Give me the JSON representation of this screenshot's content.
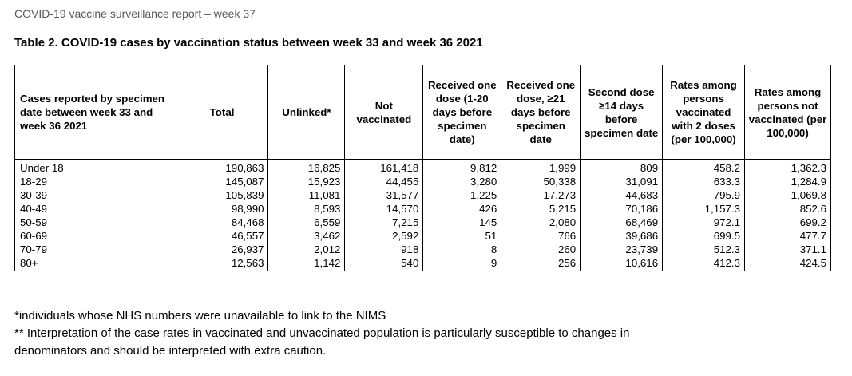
{
  "document": {
    "header": "COVID-19 vaccine surveillance report – week 37",
    "caption": "Table 2. COVID-19 cases by vaccination status between week 33 and week 36 2021",
    "table": {
      "columns": [
        "Cases reported by specimen date between week 33 and week 36 2021",
        "Total",
        "Unlinked*",
        "Not vaccinated",
        "Received one dose (1-20 days before specimen date)",
        "Received one dose, ≥21 days before specimen date",
        "Second dose ≥14 days before specimen date",
        "Rates among persons vaccinated with 2 doses (per 100,000)",
        "Rates among persons not vaccinated (per 100,000)"
      ],
      "rows": [
        [
          "Under 18",
          "190,863",
          "16,825",
          "161,418",
          "9,812",
          "1,999",
          "809",
          "458.2",
          "1,362.3"
        ],
        [
          "18-29",
          "145,087",
          "15,923",
          "44,455",
          "3,280",
          "50,338",
          "31,091",
          "633.3",
          "1,284.9"
        ],
        [
          "30-39",
          "105,839",
          "11,081",
          "31,577",
          "1,225",
          "17,273",
          "44,683",
          "795.9",
          "1,069.8"
        ],
        [
          "40-49",
          "98,990",
          "8,593",
          "14,570",
          "426",
          "5,215",
          "70,186",
          "1,157.3",
          "852.6"
        ],
        [
          "50-59",
          "84,468",
          "6,559",
          "7,215",
          "145",
          "2,080",
          "68,469",
          "972.1",
          "699.2"
        ],
        [
          "60-69",
          "46,557",
          "3,462",
          "2,592",
          "51",
          "766",
          "39,686",
          "699.5",
          "477.7"
        ],
        [
          "70-79",
          "26,937",
          "2,012",
          "918",
          "8",
          "260",
          "23,739",
          "512.3",
          "371.1"
        ],
        [
          "80+",
          "12,563",
          "1,142",
          "540",
          "9",
          "256",
          "10,616",
          "412.3",
          "424.5"
        ]
      ]
    },
    "notes": [
      "*individuals whose NHS numbers were unavailable to link to the NIMS",
      "** Interpretation of the case rates in vaccinated and unvaccinated population is particularly susceptible to changes in",
      "denominators and should be interpreted with extra caution."
    ]
  }
}
